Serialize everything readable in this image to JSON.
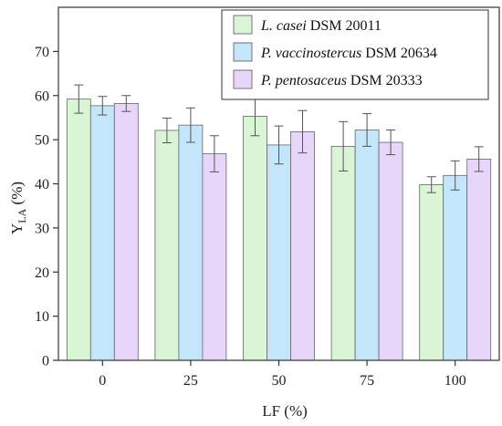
{
  "chart_data": {
    "type": "bar",
    "categories": [
      "0",
      "25",
      "50",
      "75",
      "100"
    ],
    "series": [
      {
        "name_italic": "L. casei",
        "name_rest": " DSM 20011",
        "color": "#d9f5d6",
        "values": [
          59.2,
          52.1,
          55.3,
          48.5,
          39.8
        ],
        "errors": [
          3.2,
          2.8,
          4.4,
          5.6,
          1.8
        ]
      },
      {
        "name_italic": "P. vaccinostercus",
        "name_rest": " DSM 20634",
        "color": "#c3e6fa",
        "values": [
          57.7,
          53.3,
          48.8,
          52.2,
          41.9
        ],
        "errors": [
          2.1,
          3.9,
          4.3,
          3.7,
          3.3
        ]
      },
      {
        "name_italic": "P. pentosaceus",
        "name_rest": " DSM 20333",
        "color": "#e8d6fa",
        "values": [
          58.2,
          46.8,
          51.8,
          49.4,
          45.6
        ],
        "errors": [
          1.8,
          4.1,
          4.8,
          2.8,
          2.8
        ]
      }
    ],
    "y_ticks": [
      "0",
      "10",
      "20",
      "30",
      "40",
      "50",
      "60",
      "70"
    ],
    "ylim": [
      0,
      80
    ],
    "xlabel": "LF (%)",
    "ylabel_main": "Y",
    "ylabel_sub": "LA",
    "ylabel_unit": " (%)",
    "legend_position": "top-right",
    "grid": false
  }
}
